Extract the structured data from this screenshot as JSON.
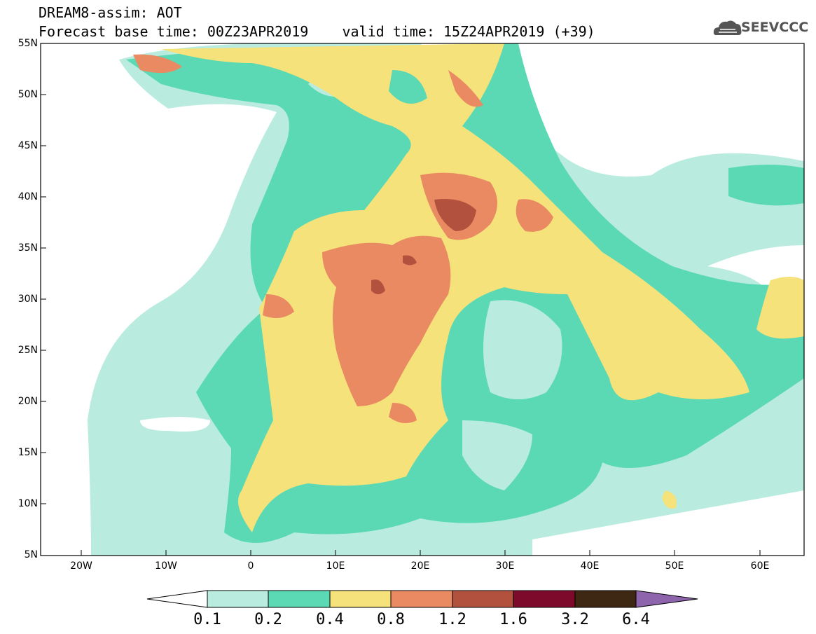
{
  "header": {
    "title_line1": "DREAM8-assim: AOT",
    "title_line2": "Forecast base time: 00Z23APR2019    valid time: 15Z24APR2019 (+39)",
    "logo_text": "SEEVCCC"
  },
  "map": {
    "lat_labels": [
      "55N",
      "50N",
      "45N",
      "40N",
      "35N",
      "30N",
      "25N",
      "20N",
      "15N",
      "10N",
      "5N"
    ],
    "lon_labels": [
      "20W",
      "10W",
      "0",
      "10E",
      "20E",
      "30E",
      "40E",
      "50E",
      "60E"
    ]
  },
  "colorbar": {
    "labels": [
      "0.1",
      "0.2",
      "0.4",
      "0.8",
      "1.2",
      "1.6",
      "3.2",
      "6.4"
    ],
    "colors": [
      "#ffffff",
      "#b9ecdf",
      "#5ad9b4",
      "#f6e27a",
      "#e98a63",
      "#b2523e",
      "#7d0a2a",
      "#3e2713",
      "#8e65ad"
    ]
  }
}
